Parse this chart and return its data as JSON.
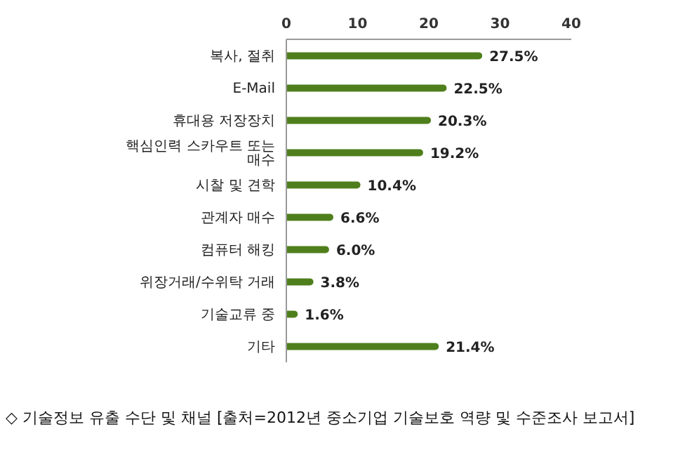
{
  "chart_data": {
    "type": "bar",
    "orientation": "horizontal",
    "categories": [
      "복사, 절취",
      "E-Mail",
      "휴대용 저장장치",
      "핵심인력 스카우트 또는 매수",
      "시찰 및 견학",
      "관계자 매수",
      "컴퓨터 해킹",
      "위장거래/수위탁 거래",
      "기술교류 중",
      "기타"
    ],
    "values": [
      27.5,
      22.5,
      20.3,
      19.2,
      10.4,
      6.6,
      6.0,
      3.8,
      1.6,
      21.4
    ],
    "value_labels": [
      "27.5%",
      "22.5%",
      "20.3%",
      "19.2%",
      "10.4%",
      "6.6%",
      "6.0%",
      "3.8%",
      "1.6%",
      "21.4%"
    ],
    "color": "#4f7f1c",
    "xlim": [
      0,
      40
    ],
    "xticks": [
      0,
      10,
      20,
      30,
      40
    ],
    "grid": false,
    "legend": false,
    "annotations": [
      "◇ 기술정보 유출 수단 및 채널 [출처=2012년 중소기업 기술보호 역량 및 수준조사 보고서]"
    ]
  }
}
